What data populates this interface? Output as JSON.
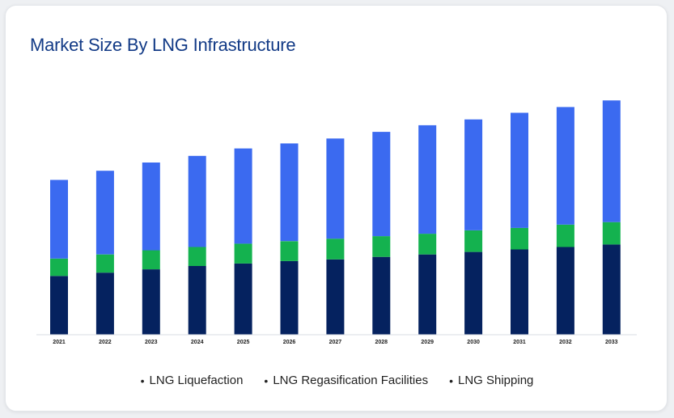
{
  "title": "Market Size By LNG Infrastructure",
  "colors": {
    "liquefaction": "#3b6af0",
    "regasification": "#14b24f",
    "shipping": "#05225f",
    "title": "#123a86"
  },
  "chart_data": {
    "type": "bar",
    "stacked": true,
    "title": "Market Size By LNG Infrastructure",
    "categories": [
      "2021",
      "2022",
      "2023",
      "2024",
      "2025",
      "2026",
      "2027",
      "2028",
      "2029",
      "2030",
      "2031",
      "2032",
      "2033"
    ],
    "series": [
      {
        "name": "LNG Shipping",
        "values": [
          71,
          75,
          79,
          83,
          86,
          89,
          91,
          94,
          97,
          100,
          103,
          106,
          109
        ]
      },
      {
        "name": "LNG Regasification Facilities",
        "values": [
          21,
          22,
          23,
          23,
          24,
          24,
          25,
          25,
          25,
          26,
          26,
          27,
          27
        ]
      },
      {
        "name": "LNG Liquefaction",
        "values": [
          95,
          101,
          106,
          110,
          115,
          118,
          121,
          126,
          131,
          134,
          139,
          142,
          147
        ]
      }
    ],
    "legend_order": [
      "LNG Liquefaction",
      "LNG Regasification Facilities",
      "LNG Shipping"
    ],
    "xlabel": "",
    "ylabel": "",
    "ylim": [
      0,
      290
    ],
    "grid": false,
    "legend": "bottom"
  }
}
